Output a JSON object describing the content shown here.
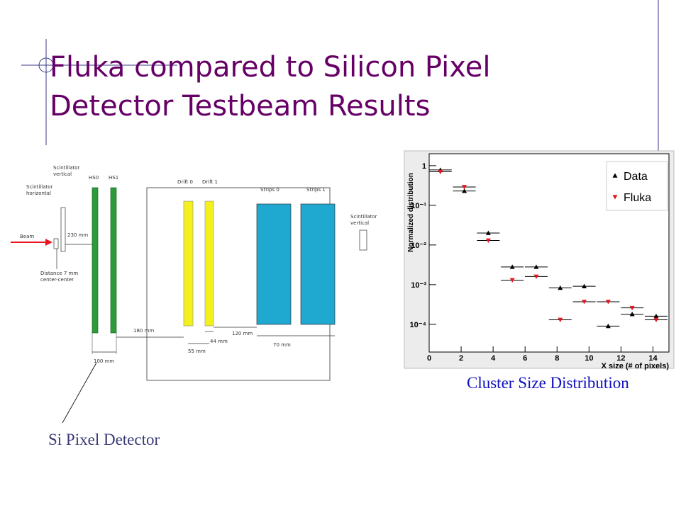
{
  "title": [
    "Fluka compared to Silicon Pixel",
    "Detector Testbeam Results"
  ],
  "diagram": {
    "labels": {
      "scint_vertical_left": "Scintillator vertical",
      "scint_horizontal": "Scintillator horizontal",
      "hs0": "HS0",
      "hs1": "HS1",
      "drift0": "Drift 0",
      "drift1": "Drift 1",
      "strips0": "Strips 0",
      "strips1": "Strips 1",
      "scint_vertical_right": "Scintillator vertical",
      "beam": "Beam",
      "d230": "230 mm",
      "distance": "Distance 7 mm center-center",
      "d180": "180 mm",
      "d55": "55 mm",
      "d44": "44 mm",
      "d120": "120 mm",
      "d70": "70 mm",
      "d100": "100 mm"
    },
    "caption": "Si Pixel Detector"
  },
  "chart_caption": "Cluster Size Distribution",
  "chart_data": {
    "type": "scatter",
    "x_label": "X size (# of pixels)",
    "y_label": "Normalized distribution",
    "x": [
      0.7,
      2.2,
      3.7,
      5.2,
      6.7,
      8.2,
      9.7,
      11.2,
      12.7,
      14.2
    ],
    "series": [
      {
        "name": "Data",
        "color": "#000000",
        "marker": "triangle-up",
        "values": [
          0.78,
          0.23,
          0.02,
          0.0028,
          0.0028,
          0.00083,
          0.00091,
          9e-05,
          0.00018,
          0.00016
        ]
      },
      {
        "name": "Fluka",
        "color": "#e8141e",
        "marker": "triangle-down",
        "values": [
          0.7,
          0.29,
          0.013,
          0.0013,
          0.0016,
          0.00013,
          0.00037,
          0.00037,
          0.00026,
          0.00013
        ]
      }
    ],
    "xlim": [
      0,
      15
    ],
    "xticks": [
      0,
      2,
      4,
      6,
      8,
      10,
      12,
      14
    ],
    "ylim": [
      2e-05,
      2
    ],
    "log_y": true,
    "yticks": [
      {
        "value": 1,
        "label": "1"
      },
      {
        "value": 0.1,
        "label": "10⁻¹"
      },
      {
        "value": 0.01,
        "label": "10⁻²"
      },
      {
        "value": 0.001,
        "label": "10⁻³"
      },
      {
        "value": 0.0001,
        "label": "10⁻⁴"
      }
    ],
    "legend": "upper right",
    "grid": false
  }
}
